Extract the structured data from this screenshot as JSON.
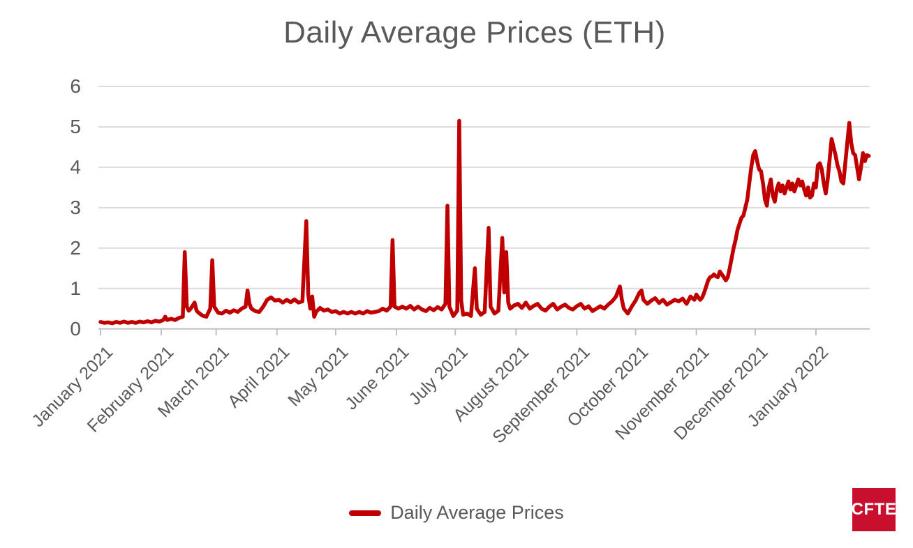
{
  "title": {
    "text": "Daily Average Prices (ETH)"
  },
  "legend": {
    "label": "Daily Average Prices"
  },
  "logo": {
    "text": "CFTE",
    "bg_color": "#C8102E",
    "text_color": "#FFFFFF"
  },
  "colors": {
    "line": "#C00000",
    "grid": "#DCDCDC",
    "axis": "#BFBFBF",
    "text": "#595959",
    "background": "#FFFFFF"
  },
  "chart_data": {
    "type": "line",
    "title": "Daily Average Prices (ETH)",
    "xlabel": "",
    "ylabel": "",
    "ylim": [
      0,
      6
    ],
    "y_ticks": [
      0,
      1,
      2,
      3,
      4,
      5,
      6
    ],
    "grid": "horizontal-only",
    "legend_position": "bottom-center",
    "x_unit": "days since 2021-01-01",
    "x_tick_labels": [
      "January 2021",
      "February 2021",
      "March 2021",
      "April 2021",
      "May 2021",
      "June 2021",
      "July 2021",
      "August 2021",
      "September 2021",
      "October 2021",
      "November 2021",
      "December 2021",
      "January 2022"
    ],
    "x_tick_day_offsets": [
      0,
      31,
      59,
      90,
      120,
      151,
      181,
      212,
      243,
      273,
      304,
      334,
      365
    ],
    "series": [
      {
        "name": "Daily Average Prices",
        "color": "#C00000",
        "points": [
          [
            0,
            0.17
          ],
          [
            2,
            0.15
          ],
          [
            4,
            0.16
          ],
          [
            6,
            0.14
          ],
          [
            8,
            0.17
          ],
          [
            10,
            0.15
          ],
          [
            12,
            0.18
          ],
          [
            14,
            0.15
          ],
          [
            16,
            0.17
          ],
          [
            18,
            0.15
          ],
          [
            20,
            0.18
          ],
          [
            22,
            0.16
          ],
          [
            24,
            0.19
          ],
          [
            26,
            0.16
          ],
          [
            28,
            0.2
          ],
          [
            30,
            0.18
          ],
          [
            32,
            0.22
          ],
          [
            33,
            0.3
          ],
          [
            34,
            0.22
          ],
          [
            36,
            0.25
          ],
          [
            38,
            0.22
          ],
          [
            40,
            0.27
          ],
          [
            42,
            0.3
          ],
          [
            43,
            1.9
          ],
          [
            44,
            0.55
          ],
          [
            45,
            0.45
          ],
          [
            46,
            0.5
          ],
          [
            48,
            0.65
          ],
          [
            49,
            0.45
          ],
          [
            50,
            0.4
          ],
          [
            52,
            0.33
          ],
          [
            54,
            0.3
          ],
          [
            56,
            0.5
          ],
          [
            57,
            1.7
          ],
          [
            58,
            0.55
          ],
          [
            60,
            0.4
          ],
          [
            62,
            0.38
          ],
          [
            64,
            0.45
          ],
          [
            66,
            0.4
          ],
          [
            68,
            0.46
          ],
          [
            70,
            0.42
          ],
          [
            72,
            0.5
          ],
          [
            74,
            0.55
          ],
          [
            75,
            0.95
          ],
          [
            76,
            0.62
          ],
          [
            77,
            0.5
          ],
          [
            79,
            0.44
          ],
          [
            81,
            0.42
          ],
          [
            83,
            0.55
          ],
          [
            85,
            0.72
          ],
          [
            87,
            0.78
          ],
          [
            89,
            0.7
          ],
          [
            91,
            0.72
          ],
          [
            93,
            0.65
          ],
          [
            95,
            0.72
          ],
          [
            97,
            0.66
          ],
          [
            99,
            0.73
          ],
          [
            101,
            0.65
          ],
          [
            103,
            0.68
          ],
          [
            105,
            2.67
          ],
          [
            106,
            0.85
          ],
          [
            107,
            0.5
          ],
          [
            108,
            0.8
          ],
          [
            109,
            0.3
          ],
          [
            110,
            0.42
          ],
          [
            112,
            0.52
          ],
          [
            114,
            0.45
          ],
          [
            116,
            0.48
          ],
          [
            118,
            0.42
          ],
          [
            120,
            0.44
          ],
          [
            122,
            0.38
          ],
          [
            124,
            0.42
          ],
          [
            126,
            0.38
          ],
          [
            128,
            0.42
          ],
          [
            130,
            0.38
          ],
          [
            132,
            0.42
          ],
          [
            134,
            0.38
          ],
          [
            136,
            0.44
          ],
          [
            138,
            0.4
          ],
          [
            140,
            0.42
          ],
          [
            142,
            0.44
          ],
          [
            144,
            0.5
          ],
          [
            146,
            0.45
          ],
          [
            148,
            0.55
          ],
          [
            149,
            2.2
          ],
          [
            150,
            0.55
          ],
          [
            152,
            0.5
          ],
          [
            154,
            0.55
          ],
          [
            156,
            0.5
          ],
          [
            158,
            0.57
          ],
          [
            160,
            0.48
          ],
          [
            162,
            0.55
          ],
          [
            164,
            0.48
          ],
          [
            166,
            0.44
          ],
          [
            168,
            0.52
          ],
          [
            170,
            0.46
          ],
          [
            172,
            0.54
          ],
          [
            174,
            0.48
          ],
          [
            176,
            0.62
          ],
          [
            177,
            3.05
          ],
          [
            178,
            0.55
          ],
          [
            180,
            0.32
          ],
          [
            182,
            0.45
          ],
          [
            183,
            5.15
          ],
          [
            184,
            0.7
          ],
          [
            185,
            0.35
          ],
          [
            187,
            0.38
          ],
          [
            189,
            0.32
          ],
          [
            191,
            1.5
          ],
          [
            192,
            0.5
          ],
          [
            194,
            0.35
          ],
          [
            196,
            0.42
          ],
          [
            198,
            2.5
          ],
          [
            199,
            0.55
          ],
          [
            201,
            0.38
          ],
          [
            203,
            0.45
          ],
          [
            205,
            2.25
          ],
          [
            206,
            0.9
          ],
          [
            207,
            1.9
          ],
          [
            208,
            0.65
          ],
          [
            209,
            0.5
          ],
          [
            211,
            0.58
          ],
          [
            213,
            0.62
          ],
          [
            215,
            0.52
          ],
          [
            217,
            0.65
          ],
          [
            219,
            0.5
          ],
          [
            221,
            0.57
          ],
          [
            223,
            0.62
          ],
          [
            225,
            0.5
          ],
          [
            227,
            0.45
          ],
          [
            229,
            0.55
          ],
          [
            231,
            0.62
          ],
          [
            233,
            0.48
          ],
          [
            235,
            0.55
          ],
          [
            237,
            0.6
          ],
          [
            239,
            0.52
          ],
          [
            241,
            0.48
          ],
          [
            243,
            0.56
          ],
          [
            245,
            0.62
          ],
          [
            247,
            0.5
          ],
          [
            249,
            0.56
          ],
          [
            251,
            0.44
          ],
          [
            253,
            0.5
          ],
          [
            255,
            0.56
          ],
          [
            257,
            0.5
          ],
          [
            259,
            0.6
          ],
          [
            261,
            0.68
          ],
          [
            263,
            0.8
          ],
          [
            265,
            1.05
          ],
          [
            266,
            0.72
          ],
          [
            267,
            0.5
          ],
          [
            269,
            0.38
          ],
          [
            271,
            0.55
          ],
          [
            273,
            0.7
          ],
          [
            275,
            0.9
          ],
          [
            276,
            0.95
          ],
          [
            277,
            0.72
          ],
          [
            279,
            0.62
          ],
          [
            281,
            0.7
          ],
          [
            283,
            0.76
          ],
          [
            285,
            0.64
          ],
          [
            287,
            0.72
          ],
          [
            289,
            0.6
          ],
          [
            291,
            0.66
          ],
          [
            293,
            0.72
          ],
          [
            295,
            0.68
          ],
          [
            297,
            0.75
          ],
          [
            299,
            0.62
          ],
          [
            301,
            0.8
          ],
          [
            303,
            0.72
          ],
          [
            304,
            0.85
          ],
          [
            305,
            0.78
          ],
          [
            306,
            0.72
          ],
          [
            307,
            0.78
          ],
          [
            308,
            0.9
          ],
          [
            309,
            1.05
          ],
          [
            310,
            1.2
          ],
          [
            311,
            1.28
          ],
          [
            312,
            1.3
          ],
          [
            313,
            1.35
          ],
          [
            314,
            1.3
          ],
          [
            315,
            1.28
          ],
          [
            316,
            1.42
          ],
          [
            317,
            1.35
          ],
          [
            318,
            1.28
          ],
          [
            319,
            1.2
          ],
          [
            320,
            1.28
          ],
          [
            321,
            1.5
          ],
          [
            322,
            1.75
          ],
          [
            323,
            2.0
          ],
          [
            324,
            2.2
          ],
          [
            325,
            2.45
          ],
          [
            326,
            2.6
          ],
          [
            327,
            2.75
          ],
          [
            328,
            2.8
          ],
          [
            329,
            3.0
          ],
          [
            330,
            3.2
          ],
          [
            331,
            3.6
          ],
          [
            332,
            4.0
          ],
          [
            333,
            4.3
          ],
          [
            334,
            4.4
          ],
          [
            335,
            4.15
          ],
          [
            336,
            3.95
          ],
          [
            337,
            3.9
          ],
          [
            338,
            3.6
          ],
          [
            339,
            3.2
          ],
          [
            340,
            3.05
          ],
          [
            341,
            3.5
          ],
          [
            342,
            3.7
          ],
          [
            343,
            3.3
          ],
          [
            344,
            3.15
          ],
          [
            345,
            3.45
          ],
          [
            346,
            3.6
          ],
          [
            347,
            3.4
          ],
          [
            348,
            3.55
          ],
          [
            349,
            3.35
          ],
          [
            350,
            3.5
          ],
          [
            351,
            3.65
          ],
          [
            352,
            3.45
          ],
          [
            353,
            3.6
          ],
          [
            354,
            3.4
          ],
          [
            355,
            3.55
          ],
          [
            356,
            3.7
          ],
          [
            357,
            3.55
          ],
          [
            358,
            3.65
          ],
          [
            359,
            3.45
          ],
          [
            360,
            3.3
          ],
          [
            361,
            3.5
          ],
          [
            362,
            3.25
          ],
          [
            363,
            3.3
          ],
          [
            364,
            3.6
          ],
          [
            365,
            3.5
          ],
          [
            366,
            4.05
          ],
          [
            367,
            4.1
          ],
          [
            368,
            3.95
          ],
          [
            369,
            3.6
          ],
          [
            370,
            3.35
          ],
          [
            371,
            3.7
          ],
          [
            372,
            4.2
          ],
          [
            373,
            4.7
          ],
          [
            374,
            4.5
          ],
          [
            375,
            4.3
          ],
          [
            376,
            4.05
          ],
          [
            377,
            3.9
          ],
          [
            378,
            3.65
          ],
          [
            379,
            3.6
          ],
          [
            380,
            4.1
          ],
          [
            381,
            4.6
          ],
          [
            382,
            5.1
          ],
          [
            383,
            4.6
          ],
          [
            384,
            4.35
          ],
          [
            385,
            4.3
          ],
          [
            386,
            4.0
          ],
          [
            387,
            3.7
          ],
          [
            388,
            4.0
          ],
          [
            389,
            4.35
          ],
          [
            390,
            4.15
          ],
          [
            391,
            4.3
          ],
          [
            392,
            4.28
          ]
        ]
      }
    ]
  }
}
